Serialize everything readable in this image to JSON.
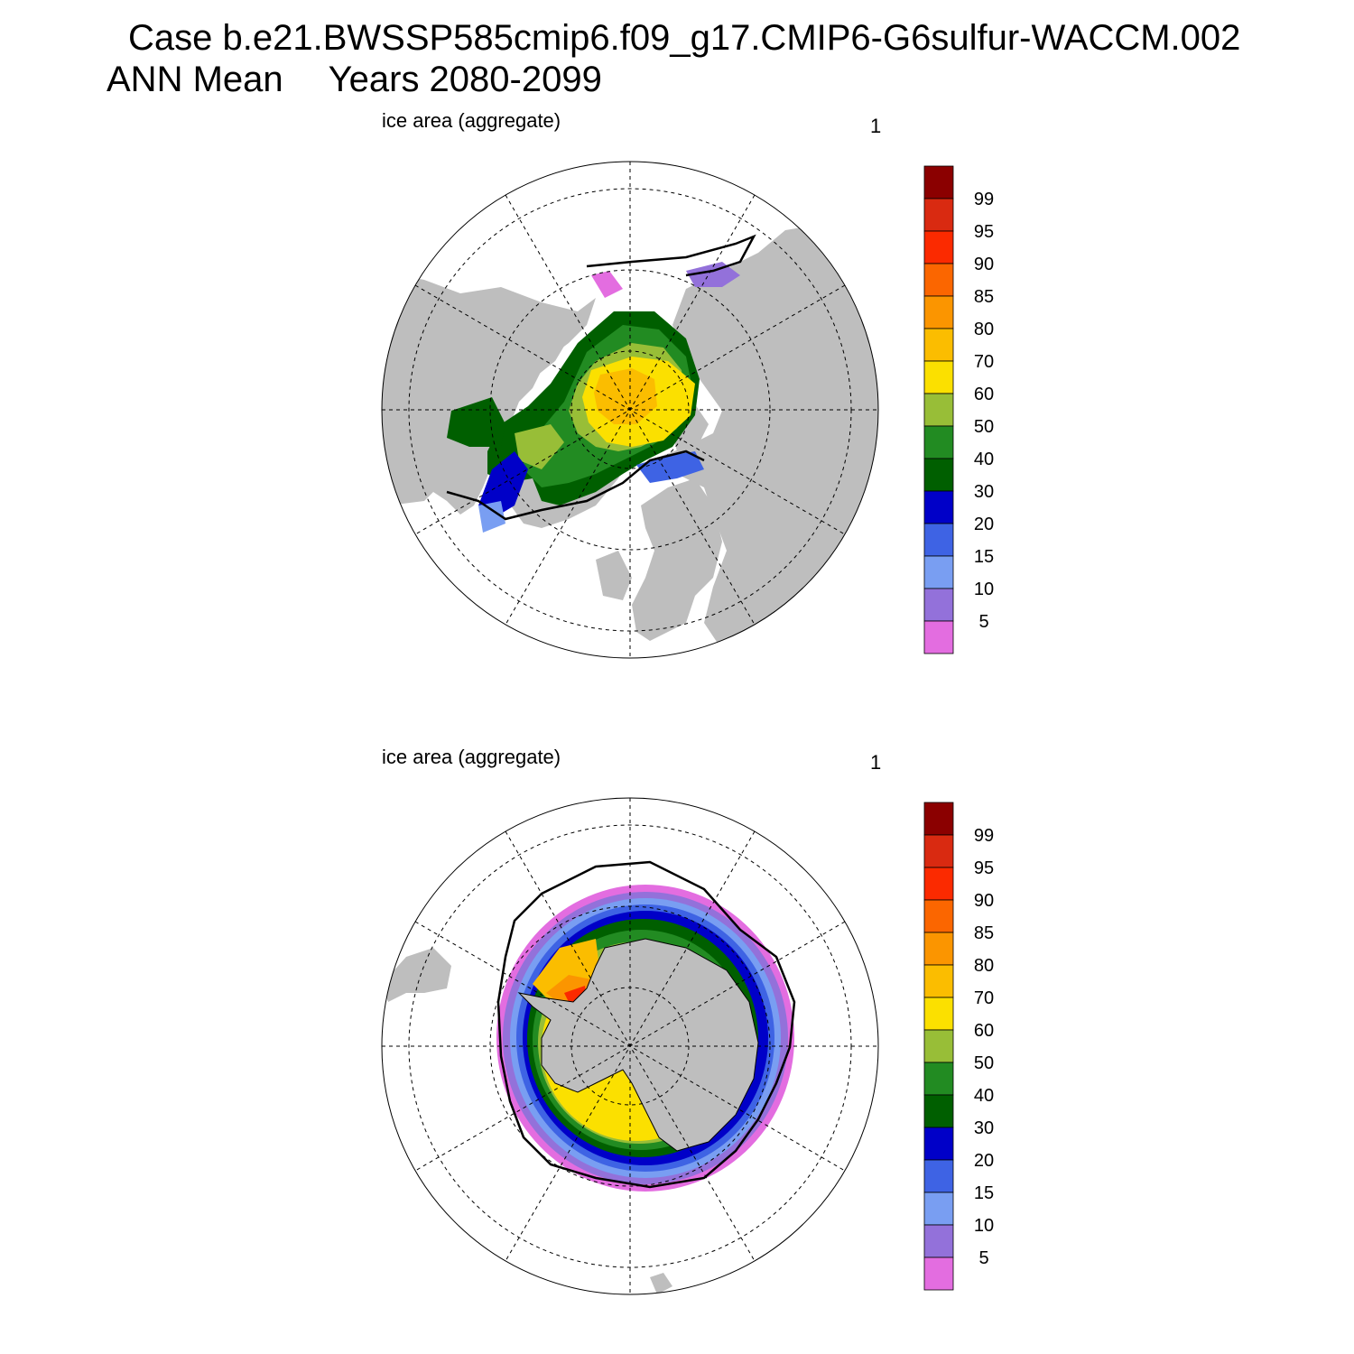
{
  "header": {
    "case_title": "Case b.e21.BWSSP585cmip6.f09_g17.CMIP6-G6sulfur-WACCM.002",
    "season": "ANN Mean",
    "years": "Years 2080-2099"
  },
  "panels": [
    {
      "hemisphere": "NH",
      "variable_label": "ice area  (aggregate)",
      "units_label": "1"
    },
    {
      "hemisphere": "SH",
      "variable_label": "ice area  (aggregate)",
      "units_label": "1"
    }
  ],
  "colorbar": {
    "levels": [
      "5",
      "10",
      "15",
      "20",
      "30",
      "40",
      "50",
      "60",
      "70",
      "80",
      "85",
      "90",
      "95",
      "99"
    ],
    "colors": [
      "#e36de0",
      "#9371da",
      "#799ef2",
      "#3e63e4",
      "#0000c8",
      "#005f00",
      "#228b22",
      "#98be37",
      "#fbe000",
      "#fbbd00",
      "#fb9500",
      "#fb6600",
      "#fb2a00",
      "#d92a11",
      "#8b0000"
    ]
  },
  "colors": {
    "land": "#bebebe",
    "ocean": "#ffffff",
    "contour": "#000000"
  }
}
